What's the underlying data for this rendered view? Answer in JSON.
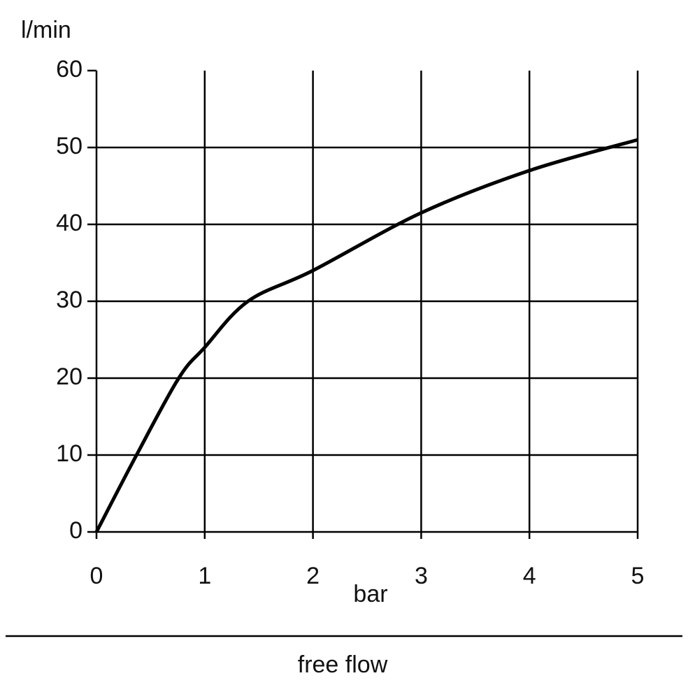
{
  "chart_data": {
    "type": "line",
    "y_label": "l/min",
    "x_label": "bar",
    "footer": "free flow",
    "x": [
      0,
      0.37,
      0.76,
      1,
      1.4,
      2,
      3,
      4,
      5
    ],
    "series": [
      {
        "color": "#000000",
        "values": [
          0,
          10,
          20,
          24,
          30,
          34,
          41.5,
          47,
          51
        ]
      }
    ],
    "xlim": [
      0,
      5
    ],
    "xticks": [
      0,
      1,
      2,
      3,
      4,
      5
    ],
    "ylim": [
      0,
      60
    ],
    "yticks": [
      0,
      10,
      20,
      30,
      40,
      50,
      60
    ],
    "grid": true
  }
}
